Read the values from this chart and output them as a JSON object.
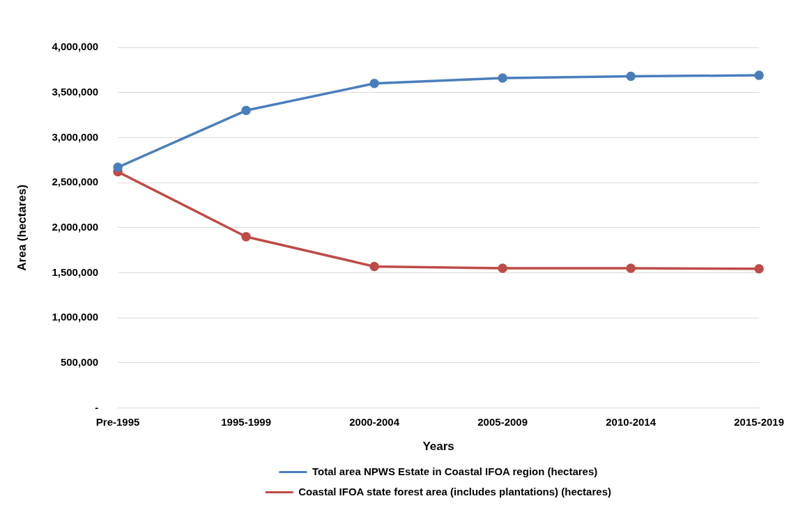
{
  "chart_data": {
    "type": "line",
    "xlabel": "Years",
    "ylabel": "Area (hectares)",
    "categories": [
      "Pre-1995",
      "1995-1999",
      "2000-2004",
      "2005-2009",
      "2010-2014",
      "2015-2019"
    ],
    "series": [
      {
        "name": "Total area NPWS Estate in Coastal IFOA region (hectares)",
        "color": "#4a7ebb",
        "values": [
          2670000,
          3300000,
          3600000,
          3660000,
          3680000,
          3690000
        ]
      },
      {
        "name": "Coastal IFOA state forest area (includes plantations) (hectares)",
        "color": "#be4b48",
        "values": [
          2620000,
          1900000,
          1570000,
          1550000,
          1550000,
          1545000
        ]
      }
    ],
    "ylim": [
      0,
      4000000
    ],
    "yticks": [
      {
        "value": 0,
        "label": "-"
      },
      {
        "value": 500000,
        "label": "500,000"
      },
      {
        "value": 1000000,
        "label": "1,000,000"
      },
      {
        "value": 1500000,
        "label": "1,500,000"
      },
      {
        "value": 2000000,
        "label": "2,000,000"
      },
      {
        "value": 2500000,
        "label": "2,500,000"
      },
      {
        "value": 3000000,
        "label": "3,000,000"
      },
      {
        "value": 3500000,
        "label": "3,500,000"
      },
      {
        "value": 4000000,
        "label": "4,000,000"
      }
    ],
    "grid": "y",
    "legend": "bottom",
    "marker": "circle",
    "line_style": "solid"
  }
}
